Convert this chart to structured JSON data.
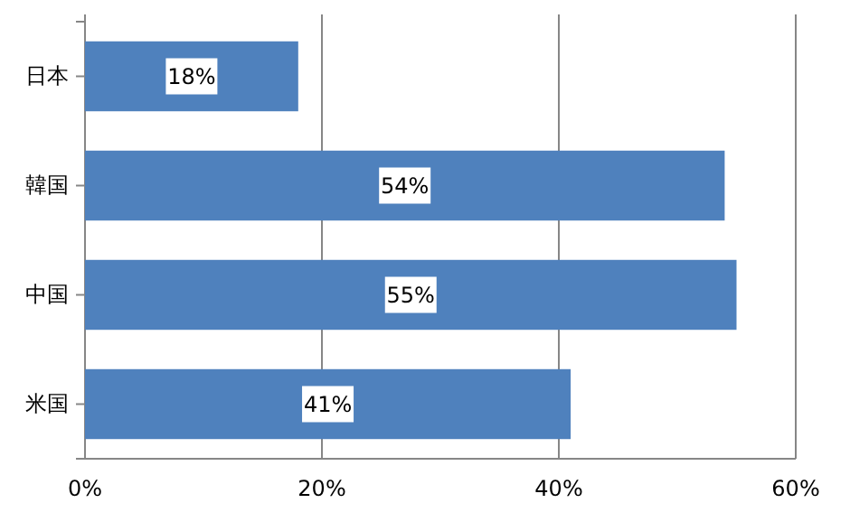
{
  "chart_data": {
    "type": "bar",
    "orientation": "horizontal",
    "categories": [
      "日本",
      "韓国",
      "中国",
      "米国"
    ],
    "values": [
      18,
      54,
      55,
      41
    ],
    "value_labels": [
      "18%",
      "54%",
      "55%",
      "41%"
    ],
    "color": "#4f81bd",
    "xlim": [
      0,
      60
    ],
    "xticks": [
      {
        "value": 0,
        "label": "0%"
      },
      {
        "value": 20,
        "label": "20%"
      },
      {
        "value": 40,
        "label": "40%"
      },
      {
        "value": 60,
        "label": "60%"
      }
    ],
    "grid": "x"
  }
}
